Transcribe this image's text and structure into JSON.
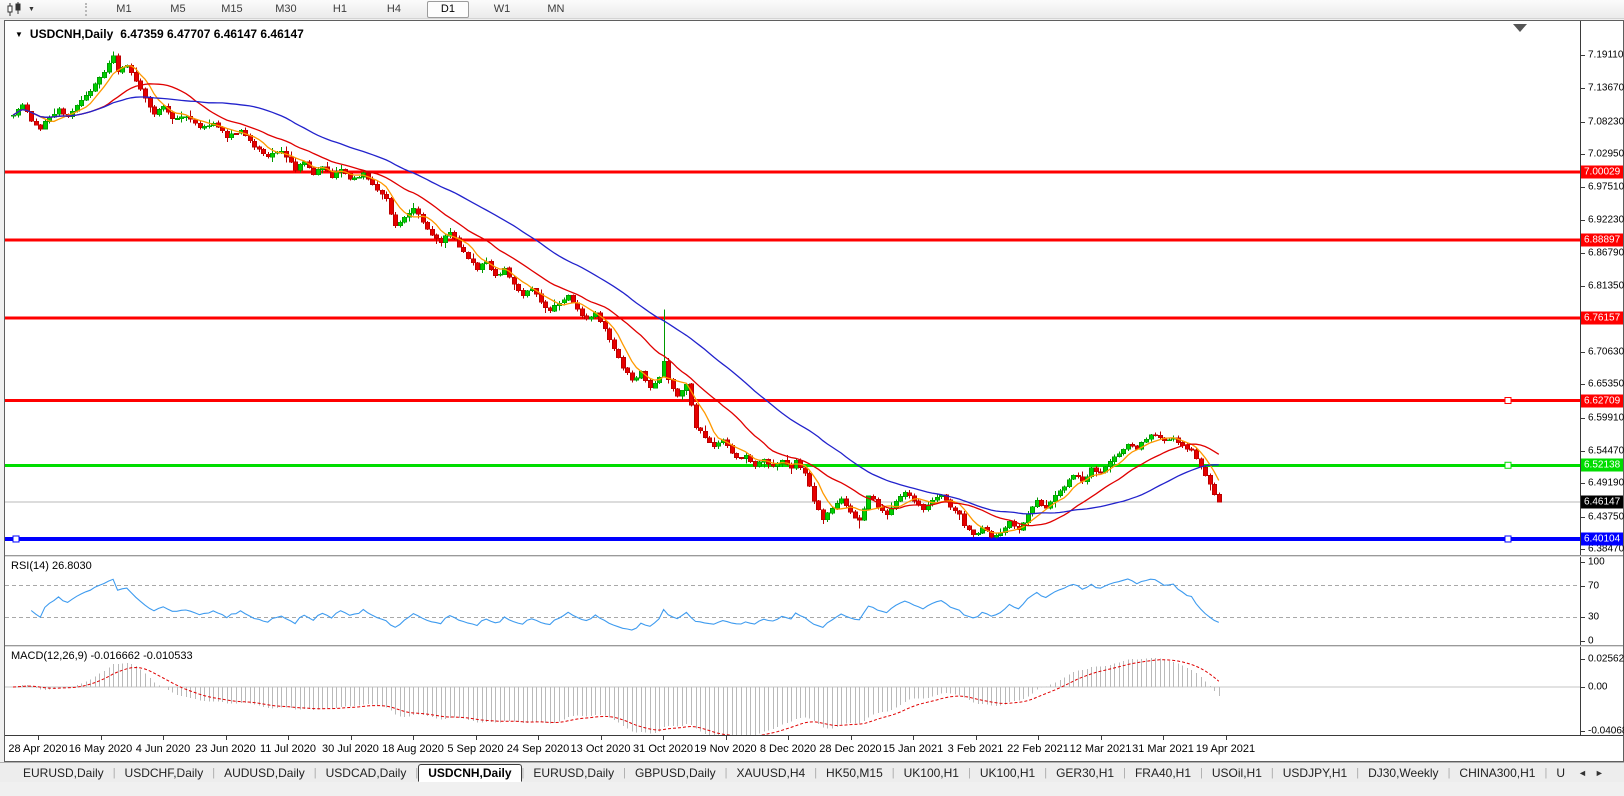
{
  "icons": {
    "dropdown": "▼",
    "title_collapse": "▼",
    "tab_scroll_left": "◄",
    "tab_scroll_right": "►"
  },
  "toolbar": {
    "timeframes": [
      "M1",
      "M5",
      "M15",
      "M30",
      "H1",
      "H4",
      "D1",
      "W1",
      "MN"
    ],
    "active_timeframe": "D1"
  },
  "chart": {
    "symbol_title": "USDCNH,Daily",
    "ohlc": "6.47359 6.47707 6.46147 6.46147",
    "open": "6.47359",
    "high": "6.47707",
    "low": "6.46147",
    "close": "6.46147"
  },
  "chart_data": {
    "type": "candlestick",
    "symbol": "USDCNH",
    "timeframe": "Daily",
    "y_axis_range": [
      6.3726,
      7.2466
    ],
    "y_ticks": [
      7.1911,
      7.1367,
      7.0823,
      7.0295,
      6.9751,
      6.9223,
      6.8679,
      6.8135,
      6.7063,
      6.6535,
      6.5991,
      6.5447,
      6.4919,
      6.4375,
      6.3847
    ],
    "x_tick_labels": [
      "28 Apr 2020",
      "16 May 2020",
      "4 Jun 2020",
      "23 Jun 2020",
      "11 Jul 2020",
      "30 Jul 2020",
      "18 Aug 2020",
      "5 Sep 2020",
      "24 Sep 2020",
      "13 Oct 2020",
      "31 Oct 2020",
      "19 Nov 2020",
      "8 Dec 2020",
      "28 Dec 2020",
      "15 Jan 2021",
      "3 Feb 2021",
      "22 Feb 2021",
      "12 Mar 2021",
      "31 Mar 2021",
      "19 Apr 2021"
    ],
    "levels": [
      {
        "value": 7.00029,
        "color": "#ff0000",
        "thickness": 3,
        "handle": false
      },
      {
        "value": 6.88897,
        "color": "#ff0000",
        "thickness": 3,
        "handle": false
      },
      {
        "value": 6.76157,
        "color": "#ff0000",
        "thickness": 3,
        "handle": false
      },
      {
        "value": 6.62709,
        "color": "#ff0000",
        "thickness": 3,
        "handle": true
      },
      {
        "value": 6.52138,
        "color": "#00dd00",
        "thickness": 3,
        "handle": true
      },
      {
        "value": 6.40104,
        "color": "#0000ff",
        "thickness": 4,
        "handle": true,
        "left_handle": true
      }
    ],
    "current_price": {
      "value": 6.46147,
      "line_color": "#b8b8b8",
      "label_bg": "#000000"
    },
    "candle_count": 266,
    "last_candle": [
      6.47359,
      6.47707,
      6.46147,
      6.46147
    ],
    "close_waypoints": [
      [
        0,
        7.095
      ],
      [
        2,
        7.108
      ],
      [
        4,
        7.085
      ],
      [
        6,
        7.072
      ],
      [
        8,
        7.09
      ],
      [
        10,
        7.103
      ],
      [
        12,
        7.088
      ],
      [
        14,
        7.11
      ],
      [
        16,
        7.125
      ],
      [
        18,
        7.142
      ],
      [
        20,
        7.163
      ],
      [
        22,
        7.188
      ],
      [
        23,
        7.165
      ],
      [
        25,
        7.176
      ],
      [
        27,
        7.148
      ],
      [
        29,
        7.118
      ],
      [
        31,
        7.096
      ],
      [
        33,
        7.108
      ],
      [
        35,
        7.085
      ],
      [
        38,
        7.093
      ],
      [
        41,
        7.07
      ],
      [
        44,
        7.082
      ],
      [
        47,
        7.058
      ],
      [
        50,
        7.068
      ],
      [
        53,
        7.042
      ],
      [
        56,
        7.025
      ],
      [
        59,
        7.036
      ],
      [
        62,
        7.005
      ],
      [
        64,
        7.016
      ],
      [
        66,
        6.996
      ],
      [
        68,
        7.008
      ],
      [
        70,
        6.992
      ],
      [
        72,
        7.004
      ],
      [
        74,
        6.986
      ],
      [
        77,
        6.998
      ],
      [
        80,
        6.972
      ],
      [
        82,
        6.954
      ],
      [
        84,
        6.91
      ],
      [
        86,
        6.928
      ],
      [
        88,
        6.94
      ],
      [
        90,
        6.918
      ],
      [
        92,
        6.896
      ],
      [
        94,
        6.886
      ],
      [
        96,
        6.902
      ],
      [
        98,
        6.878
      ],
      [
        100,
        6.858
      ],
      [
        102,
        6.843
      ],
      [
        104,
        6.853
      ],
      [
        106,
        6.829
      ],
      [
        108,
        6.841
      ],
      [
        110,
        6.818
      ],
      [
        112,
        6.799
      ],
      [
        114,
        6.811
      ],
      [
        116,
        6.788
      ],
      [
        118,
        6.774
      ],
      [
        120,
        6.786
      ],
      [
        122,
        6.798
      ],
      [
        124,
        6.776
      ],
      [
        126,
        6.758
      ],
      [
        128,
        6.77
      ],
      [
        130,
        6.742
      ],
      [
        132,
        6.712
      ],
      [
        134,
        6.682
      ],
      [
        136,
        6.66
      ],
      [
        138,
        6.673
      ],
      [
        140,
        6.649
      ],
      [
        142,
        6.664
      ],
      [
        143,
        6.69
      ],
      [
        144,
        6.659
      ],
      [
        146,
        6.636
      ],
      [
        148,
        6.653
      ],
      [
        149,
        6.62
      ],
      [
        150,
        6.585
      ],
      [
        152,
        6.568
      ],
      [
        154,
        6.552
      ],
      [
        156,
        6.562
      ],
      [
        158,
        6.542
      ],
      [
        160,
        6.53
      ],
      [
        161,
        6.536
      ],
      [
        163,
        6.522
      ],
      [
        165,
        6.533
      ],
      [
        167,
        6.518
      ],
      [
        169,
        6.529
      ],
      [
        171,
        6.516
      ],
      [
        172,
        6.528
      ],
      [
        174,
        6.51
      ],
      [
        176,
        6.462
      ],
      [
        178,
        6.432
      ],
      [
        180,
        6.452
      ],
      [
        182,
        6.468
      ],
      [
        184,
        6.445
      ],
      [
        186,
        6.43
      ],
      [
        188,
        6.472
      ],
      [
        190,
        6.455
      ],
      [
        192,
        6.44
      ],
      [
        194,
        6.462
      ],
      [
        196,
        6.478
      ],
      [
        198,
        6.465
      ],
      [
        200,
        6.448
      ],
      [
        202,
        6.462
      ],
      [
        204,
        6.475
      ],
      [
        206,
        6.455
      ],
      [
        208,
        6.44
      ],
      [
        209,
        6.425
      ],
      [
        211,
        6.408
      ],
      [
        213,
        6.418
      ],
      [
        215,
        6.406
      ],
      [
        217,
        6.412
      ],
      [
        219,
        6.428
      ],
      [
        221,
        6.415
      ],
      [
        223,
        6.442
      ],
      [
        225,
        6.462
      ],
      [
        227,
        6.452
      ],
      [
        229,
        6.472
      ],
      [
        231,
        6.488
      ],
      [
        233,
        6.505
      ],
      [
        235,
        6.495
      ],
      [
        237,
        6.515
      ],
      [
        239,
        6.508
      ],
      [
        241,
        6.525
      ],
      [
        243,
        6.542
      ],
      [
        245,
        6.555
      ],
      [
        247,
        6.548
      ],
      [
        249,
        6.565
      ],
      [
        251,
        6.572
      ],
      [
        253,
        6.56
      ],
      [
        255,
        6.568
      ],
      [
        257,
        6.552
      ],
      [
        259,
        6.545
      ],
      [
        261,
        6.52
      ],
      [
        263,
        6.49
      ],
      [
        264,
        6.472
      ],
      [
        265,
        6.46147
      ]
    ],
    "wick_events": [
      {
        "i": 22,
        "high": 7.197
      },
      {
        "i": 143,
        "high": 6.776
      },
      {
        "i": 186,
        "low": 6.418
      },
      {
        "i": 215,
        "low": 6.402
      }
    ],
    "moving_averages": [
      {
        "name": "ma-fast",
        "period": 6,
        "color": "#ff9900"
      },
      {
        "name": "ma-mid",
        "period": 18,
        "color": "#e00000"
      },
      {
        "name": "ma-slow",
        "period": 40,
        "color": "#2222cc"
      }
    ],
    "colors": {
      "up_fill": "#00ce00",
      "up_stroke": "#009900",
      "down_fill": "#e60000",
      "down_stroke": "#bb0000"
    }
  },
  "rsi": {
    "label": "RSI(14) 26.8030",
    "value": 26.803,
    "period": 14,
    "overbought": 70,
    "oversold": 30,
    "axis_labels": [
      "100",
      "70",
      "30",
      "0"
    ],
    "axis_values": [
      100,
      70,
      30,
      0
    ],
    "color": "#3e9bef"
  },
  "macd": {
    "label": "MACD(12,26,9) -0.016662 -0.010533",
    "macd_value": -0.016662,
    "signal_value": -0.010533,
    "axis_labels": [
      "0.025623",
      "0.00",
      "-0.040687"
    ],
    "axis_values": [
      0.025623,
      0,
      -0.040687
    ],
    "histogram_color": "#b9b9b9",
    "signal_color": "#e00000"
  },
  "tabs": {
    "items": [
      "EURUSD,Daily",
      "USDCHF,Daily",
      "AUDUSD,Daily",
      "USDCAD,Daily",
      "USDCNH,Daily",
      "EURUSD,Daily",
      "GBPUSD,Daily",
      "XAUUSD,H4",
      "HK50,M15",
      "UK100,H1",
      "UK100,H1",
      "GER30,H1",
      "FRA40,H1",
      "USOil,H1",
      "USDJPY,H1",
      "DJ30,Weekly",
      "CHINA300,H1",
      "U"
    ],
    "active_index": 4
  }
}
